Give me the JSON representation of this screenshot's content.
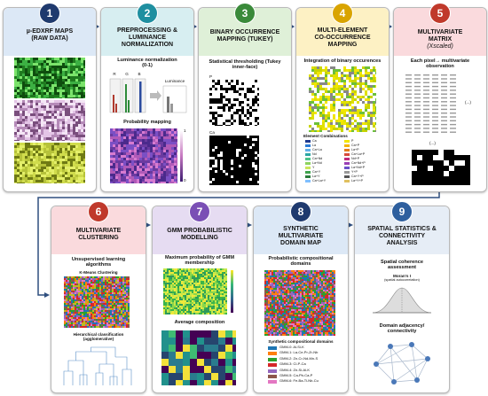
{
  "steps": [
    {
      "number": "1",
      "title": [
        "µ-EDXRF MAPS",
        "(RAW DATA)"
      ]
    },
    {
      "number": "2",
      "title": [
        "PREPROCESSING &",
        "LUMINANCE",
        "NORMALIZATION"
      ],
      "caption": "Luminance normalization (0-1)",
      "channels": [
        "R",
        "G",
        "B"
      ],
      "luminance": "Luminance",
      "subtitle": "Probability mapping",
      "scale": [
        "1",
        "0"
      ]
    },
    {
      "number": "3",
      "title": [
        "BINARY OCCURRENCE",
        "MAPPING (TUKEY)"
      ],
      "caption": "Statistical thresholding (Tukey inner-face)",
      "maps": [
        "P",
        "Ca"
      ]
    },
    {
      "number": "4",
      "title": [
        "MULTI-ELEMENT",
        "CO-OCCURRENCE",
        "MAPPING"
      ],
      "caption": "Integration of binary occurences",
      "legend_title": "Element Combinations",
      "legend": [
        "Ca",
        "La",
        "Ca+La",
        "Nd",
        "Ca+Nd",
        "La+Nd",
        "Y",
        "Ca+Y",
        "La+Y",
        "Ca+La+Y",
        "P",
        "Ca+P",
        "La+P",
        "Ca+La+P",
        "Nd+P",
        "Ca+Nd+P",
        "La+Nd+P",
        "Y+P",
        "Ca+Y+P",
        "La+Y+P"
      ]
    },
    {
      "number": "5",
      "title": [
        "MULTIVARIATE",
        "MATRIX"
      ],
      "subtitle": "(Xscaled)",
      "caption": "Each pixel→ multivariate observation",
      "ellipsis": [
        "(...)",
        "(...)"
      ]
    },
    {
      "number": "6",
      "title": [
        "MULTIVARIATE",
        "CLUSTERING"
      ],
      "caption": "Unsupervised learning algorithms",
      "panels": [
        "K-Means Clustering",
        "Hierarchical classification (agglomerative)"
      ]
    },
    {
      "number": "7",
      "title": [
        "GMM PROBABILISTIC",
        "MODELLING"
      ],
      "caption": "Maximum probability of GMM membership",
      "panel": "Average composition"
    },
    {
      "number": "8",
      "title": [
        "SYNTHETIC",
        "MULTIVARIATE",
        "DOMAIN MAP"
      ],
      "caption": "Probabilistic compositional domains",
      "legend_title": "Synthetic compositional domains",
      "legend": [
        "GMM-0: Al-Si-K",
        "GMM-1: La-Ce-Pr-Zr-Nb",
        "GMM-2: Zn-Cr-Nd-Mn-S",
        "GMM-3: Cl-P-Ca",
        "GMM-4: Zn-Si-Al-K",
        "GMM-5: Ca-Pb-Ca-P",
        "GMM-6: Fe-Ba-Ti-Nb-Cu"
      ]
    },
    {
      "number": "9",
      "title": [
        "SPATIAL STATISTICS &",
        "CONNECTIVITY",
        "ANALYSIS"
      ],
      "caption": "Spatial coherence assessment",
      "stat": "Moran's I",
      "stat_note": "(spatial autocorrelation)",
      "note": "Domain adjacency/ connectivity"
    }
  ]
}
